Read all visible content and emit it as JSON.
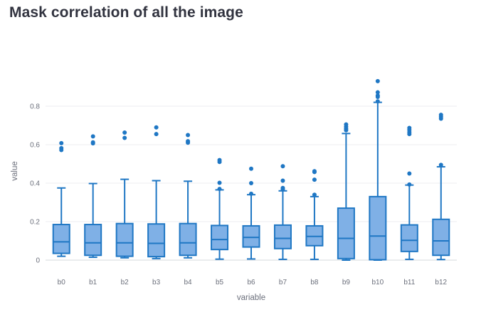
{
  "chart_data": {
    "type": "box",
    "title": "Mask correlation of all the image",
    "xlabel": "variable",
    "ylabel": "value",
    "ylim": [
      0,
      0.97
    ],
    "y_ticks": [
      0,
      0.2,
      0.4,
      0.6,
      0.8
    ],
    "y_tick_labels": [
      "0",
      "0.2",
      "0.4",
      "0.6",
      "0.8"
    ],
    "grid": true,
    "series_color": "#1f77c4",
    "box_fill": "#7fb0e6",
    "categories": [
      "b0",
      "b1",
      "b2",
      "b3",
      "b4",
      "b5",
      "b6",
      "b7",
      "b8",
      "b9",
      "b10",
      "b11",
      "b12"
    ],
    "boxes": [
      {
        "name": "b0",
        "min": 0.02,
        "q1": 0.035,
        "median": 0.095,
        "q3": 0.185,
        "max": 0.375,
        "outliers": [
          0.572,
          0.582,
          0.608
        ]
      },
      {
        "name": "b1",
        "min": 0.015,
        "q1": 0.025,
        "median": 0.09,
        "q3": 0.185,
        "max": 0.398,
        "outliers": [
          0.607,
          0.612,
          0.643
        ]
      },
      {
        "name": "b2",
        "min": 0.012,
        "q1": 0.02,
        "median": 0.09,
        "q3": 0.19,
        "max": 0.42,
        "outliers": [
          0.635,
          0.663
        ]
      },
      {
        "name": "b3",
        "min": 0.008,
        "q1": 0.018,
        "median": 0.087,
        "q3": 0.188,
        "max": 0.413,
        "outliers": [
          0.655,
          0.69
        ]
      },
      {
        "name": "b4",
        "min": 0.012,
        "q1": 0.025,
        "median": 0.09,
        "q3": 0.19,
        "max": 0.41,
        "outliers": [
          0.61,
          0.618,
          0.65
        ]
      },
      {
        "name": "b5",
        "min": 0.005,
        "q1": 0.055,
        "median": 0.107,
        "q3": 0.18,
        "max": 0.365,
        "outliers": [
          0.37,
          0.402,
          0.51,
          0.52
        ]
      },
      {
        "name": "b6",
        "min": 0.006,
        "q1": 0.068,
        "median": 0.118,
        "q3": 0.178,
        "max": 0.34,
        "outliers": [
          0.345,
          0.4,
          0.475
        ]
      },
      {
        "name": "b7",
        "min": 0.004,
        "q1": 0.06,
        "median": 0.113,
        "q3": 0.182,
        "max": 0.36,
        "outliers": [
          0.368,
          0.375,
          0.413,
          0.488
        ]
      },
      {
        "name": "b8",
        "min": 0.004,
        "q1": 0.075,
        "median": 0.123,
        "q3": 0.178,
        "max": 0.33,
        "outliers": [
          0.34,
          0.418,
          0.458,
          0.462
        ]
      },
      {
        "name": "b9",
        "min": 0.0,
        "q1": 0.008,
        "median": 0.113,
        "q3": 0.27,
        "max": 0.658,
        "outliers": [
          0.675,
          0.683,
          0.693,
          0.705
        ]
      },
      {
        "name": "b10",
        "min": 0.0,
        "q1": 0.002,
        "median": 0.125,
        "q3": 0.33,
        "max": 0.82,
        "outliers": [
          0.825,
          0.848,
          0.855,
          0.872,
          0.93
        ]
      },
      {
        "name": "b11",
        "min": 0.004,
        "q1": 0.045,
        "median": 0.103,
        "q3": 0.183,
        "max": 0.39,
        "outliers": [
          0.393,
          0.45,
          0.655,
          0.665,
          0.677,
          0.687
        ]
      },
      {
        "name": "b12",
        "min": 0.003,
        "q1": 0.025,
        "median": 0.1,
        "q3": 0.212,
        "max": 0.485,
        "outliers": [
          0.495,
          0.735,
          0.745,
          0.755
        ]
      }
    ]
  }
}
